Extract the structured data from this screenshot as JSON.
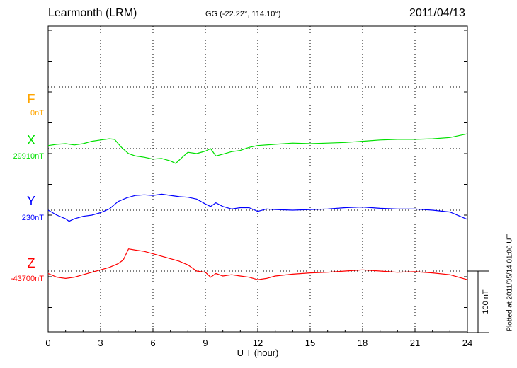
{
  "header": {
    "station": "Learmonth (LRM)",
    "coords": "GG (-22.22°, 114.10°)",
    "date": "2011/04/13"
  },
  "footer_note": "Plotted at 2011/05/14 01:00 UT",
  "chart_data": {
    "type": "line",
    "title": "Learmonth (LRM)",
    "xlabel": "U T (hour)",
    "xlim": [
      0,
      24
    ],
    "xticks": [
      "0",
      "3",
      "6",
      "9",
      "12",
      "15",
      "18",
      "21",
      "24"
    ],
    "grid": true,
    "scale_bar_label": "100 nT",
    "scale_bar_nT": 100,
    "series": [
      {
        "name": "F",
        "baseline_label": "0nT",
        "color": "#ffa500",
        "offset_unit": "nT",
        "x": [],
        "y": []
      },
      {
        "name": "X",
        "baseline_label": "29910nT",
        "color": "#00e000",
        "offset_unit": "nT",
        "x": [
          0,
          0.5,
          1,
          1.5,
          2,
          2.5,
          3,
          3.5,
          3.8,
          4.2,
          4.6,
          5,
          5.5,
          6,
          6.5,
          7,
          7.3,
          7.6,
          8,
          8.5,
          9,
          9.3,
          9.6,
          10,
          10.5,
          11,
          11.5,
          12,
          13,
          14,
          15,
          16,
          17,
          18,
          19,
          20,
          21,
          22,
          23,
          24
        ],
        "y": [
          5,
          7,
          8,
          6,
          8,
          12,
          14,
          16,
          15,
          2,
          -8,
          -12,
          -14,
          -17,
          -16,
          -20,
          -24,
          -16,
          -6,
          -8,
          -4,
          0,
          -12,
          -9,
          -5,
          -3,
          2,
          5,
          7,
          9,
          8,
          9,
          10,
          12,
          14,
          15,
          15,
          16,
          18,
          24
        ]
      },
      {
        "name": "Y",
        "baseline_label": "230nT",
        "color": "#0000ff",
        "offset_unit": "nT",
        "x": [
          0,
          0.5,
          1,
          1.2,
          1.5,
          2,
          2.5,
          3,
          3.5,
          4,
          4.5,
          5,
          5.5,
          6,
          6.5,
          7,
          7.5,
          8,
          8.5,
          9,
          9.3,
          9.6,
          10,
          10.5,
          11,
          11.5,
          12,
          12.5,
          13,
          14,
          15,
          16,
          17,
          18,
          19,
          20,
          21,
          22,
          23,
          24
        ],
        "y": [
          0,
          -8,
          -14,
          -18,
          -14,
          -10,
          -8,
          -4,
          2,
          14,
          20,
          24,
          25,
          24,
          26,
          24,
          22,
          21,
          18,
          10,
          6,
          12,
          6,
          2,
          4,
          4,
          -2,
          2,
          1,
          0,
          1,
          2,
          4,
          5,
          3,
          2,
          2,
          0,
          -3,
          -15
        ]
      },
      {
        "name": "Z",
        "baseline_label": "-43700nT",
        "color": "#ff0000",
        "offset_unit": "nT",
        "x": [
          0,
          0.5,
          1,
          1.5,
          2,
          2.5,
          3,
          3.5,
          4,
          4.3,
          4.6,
          5,
          5.5,
          6,
          6.5,
          7,
          7.5,
          8,
          8.5,
          9,
          9.3,
          9.6,
          10,
          10.5,
          11,
          11.5,
          12,
          12.5,
          13,
          14,
          15,
          16,
          17,
          18,
          19,
          20,
          21,
          22,
          23,
          24
        ],
        "y": [
          -4,
          -10,
          -12,
          -10,
          -6,
          -2,
          2,
          6,
          12,
          18,
          36,
          34,
          32,
          28,
          24,
          20,
          16,
          10,
          0,
          -2,
          -10,
          -4,
          -8,
          -6,
          -8,
          -10,
          -14,
          -12,
          -8,
          -5,
          -3,
          -2,
          0,
          2,
          0,
          -2,
          -1,
          -3,
          -6,
          -14
        ]
      }
    ]
  }
}
